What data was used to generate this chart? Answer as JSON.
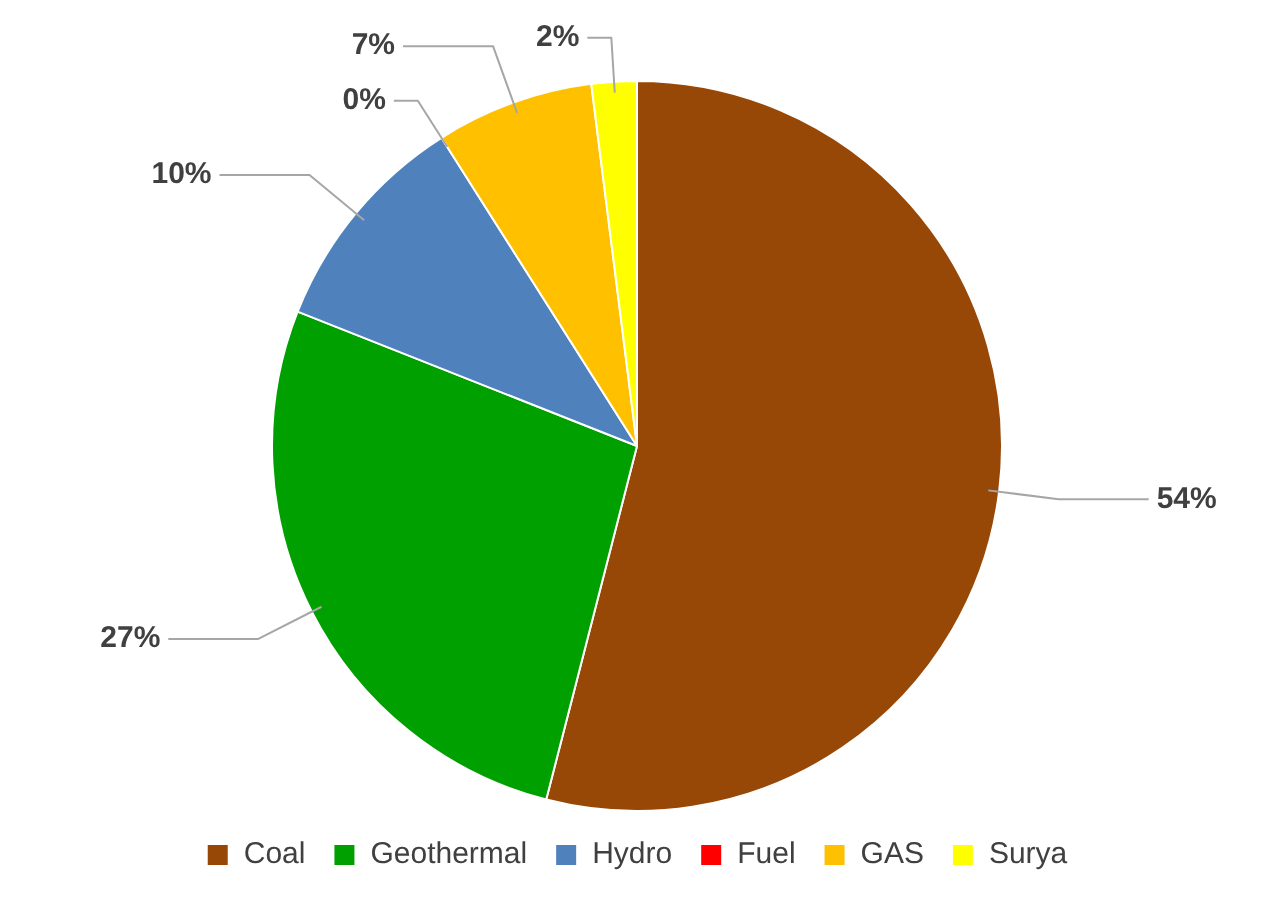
{
  "chart_data": {
    "type": "pie",
    "categories": [
      "Coal",
      "Geothermal",
      "Hydro",
      "Fuel",
      "GAS",
      "Surya"
    ],
    "values": [
      54,
      27,
      10,
      0,
      7,
      2
    ],
    "value_labels": [
      "54%",
      "27%",
      "10%",
      "0%",
      "7%",
      "2%"
    ],
    "colors": [
      "#974706",
      "#00a000",
      "#4f81bd",
      "#ff0000",
      "#ffc000",
      "#ffff00"
    ],
    "legend": "bottom"
  }
}
